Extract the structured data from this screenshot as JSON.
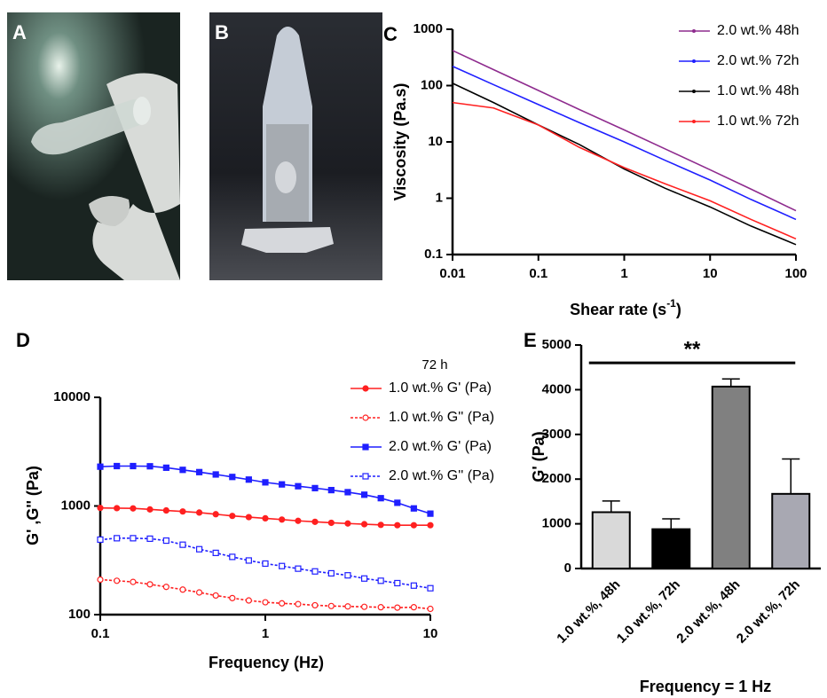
{
  "photos": [
    {
      "label": "A"
    },
    {
      "label": "B"
    }
  ],
  "chart_data": [
    {
      "type": "line",
      "panel_label": "C",
      "log_x": true,
      "log_y": true,
      "y_label": "Viscosity (Pa.s)",
      "x_label": [
        "Shear rate (s",
        "-1",
        ")"
      ],
      "x": [
        0.01,
        0.03,
        0.1,
        0.3,
        1,
        3,
        10,
        30,
        100
      ],
      "series": [
        {
          "name": "2.0 wt.% 48h",
          "color": "#8e2b8e",
          "values": [
            420,
            192,
            82,
            37.6,
            16.3,
            7.5,
            3.2,
            1.45,
            0.6
          ]
        },
        {
          "name": "2.0 wt.% 72h",
          "color": "#1f1fff",
          "values": [
            220,
            104,
            46,
            22,
            10,
            4.7,
            2.1,
            0.95,
            0.42
          ]
        },
        {
          "name": "1.0 wt.% 48h",
          "color": "#000000",
          "values": [
            110,
            50,
            20,
            9,
            3.3,
            1.5,
            0.7,
            0.32,
            0.15
          ]
        },
        {
          "name": "1.0 wt.% 72h",
          "color": "#ff2020",
          "values": [
            50,
            40,
            20,
            8,
            3.5,
            1.8,
            0.9,
            0.42,
            0.19
          ]
        }
      ],
      "xlim": [
        0.01,
        100
      ],
      "xticks": [
        0.01,
        0.1,
        1,
        10,
        100
      ],
      "ylim": [
        0.1,
        1000
      ],
      "yticks": [
        0.1,
        1,
        10,
        100,
        1000
      ],
      "legend": "top-right"
    },
    {
      "type": "line",
      "panel_label": "D",
      "log_x": true,
      "log_y": true,
      "y_label": "G' ,G'' (Pa)",
      "x_label": [
        "Frequency (Hz)"
      ],
      "legend_title": "72 h",
      "x": [
        0.1,
        0.126,
        0.158,
        0.2,
        0.251,
        0.316,
        0.398,
        0.501,
        0.631,
        0.794,
        1,
        1.26,
        1.58,
        2,
        2.51,
        3.16,
        3.98,
        5.01,
        6.31,
        7.94,
        10
      ],
      "series": [
        {
          "name": "1.0 wt.% G' (Pa)",
          "color": "#ff2020",
          "marker": "circle",
          "filled": true,
          "dashed": false,
          "values": [
            960,
            955,
            950,
            930,
            910,
            890,
            870,
            840,
            810,
            790,
            770,
            750,
            730,
            715,
            700,
            690,
            680,
            670,
            665,
            665,
            665
          ]
        },
        {
          "name": "1.0 wt.% G'' (Pa)",
          "color": "#ff2020",
          "marker": "circle",
          "filled": false,
          "dashed": true,
          "values": [
            210,
            205,
            200,
            190,
            180,
            170,
            160,
            150,
            142,
            135,
            130,
            127,
            125,
            122,
            120,
            119,
            118,
            117,
            116,
            117,
            113
          ]
        },
        {
          "name": "2.0 wt.% G' (Pa)",
          "color": "#1f1fff",
          "marker": "square",
          "filled": true,
          "dashed": false,
          "values": [
            2300,
            2330,
            2330,
            2320,
            2250,
            2150,
            2050,
            1950,
            1850,
            1750,
            1650,
            1580,
            1520,
            1460,
            1400,
            1340,
            1270,
            1180,
            1070,
            950,
            850
          ]
        },
        {
          "name": "2.0 wt.% G'' (Pa)",
          "color": "#1f1fff",
          "marker": "square",
          "filled": false,
          "dashed": true,
          "values": [
            490,
            505,
            505,
            500,
            480,
            440,
            400,
            370,
            340,
            315,
            295,
            280,
            265,
            250,
            240,
            230,
            215,
            205,
            195,
            185,
            175
          ]
        }
      ],
      "xlim": [
        0.1,
        10
      ],
      "xticks": [
        0.1,
        1,
        10
      ],
      "ylim": [
        100,
        10000
      ],
      "yticks": [
        100,
        1000,
        10000
      ],
      "legend": "top-right"
    },
    {
      "type": "bar",
      "panel_label": "E",
      "y_label": "G' (Pa)",
      "x_label": [
        "Frequency = 1 Hz"
      ],
      "categories": [
        "1.0 wt.%, 48h",
        "1.0 wt.%, 72h",
        "2.0 wt.%, 48h",
        "2.0 wt.%, 72h"
      ],
      "values": [
        1260,
        880,
        4070,
        1670
      ],
      "errors": [
        250,
        230,
        170,
        780
      ],
      "colors": [
        "#d9d9d9",
        "#000000",
        "#808080",
        "#a8a8b2"
      ],
      "ylim": [
        0,
        5000
      ],
      "yticks": [
        0,
        1000,
        2000,
        3000,
        4000,
        5000
      ],
      "significance": {
        "text": "**",
        "y": 4600
      }
    }
  ]
}
